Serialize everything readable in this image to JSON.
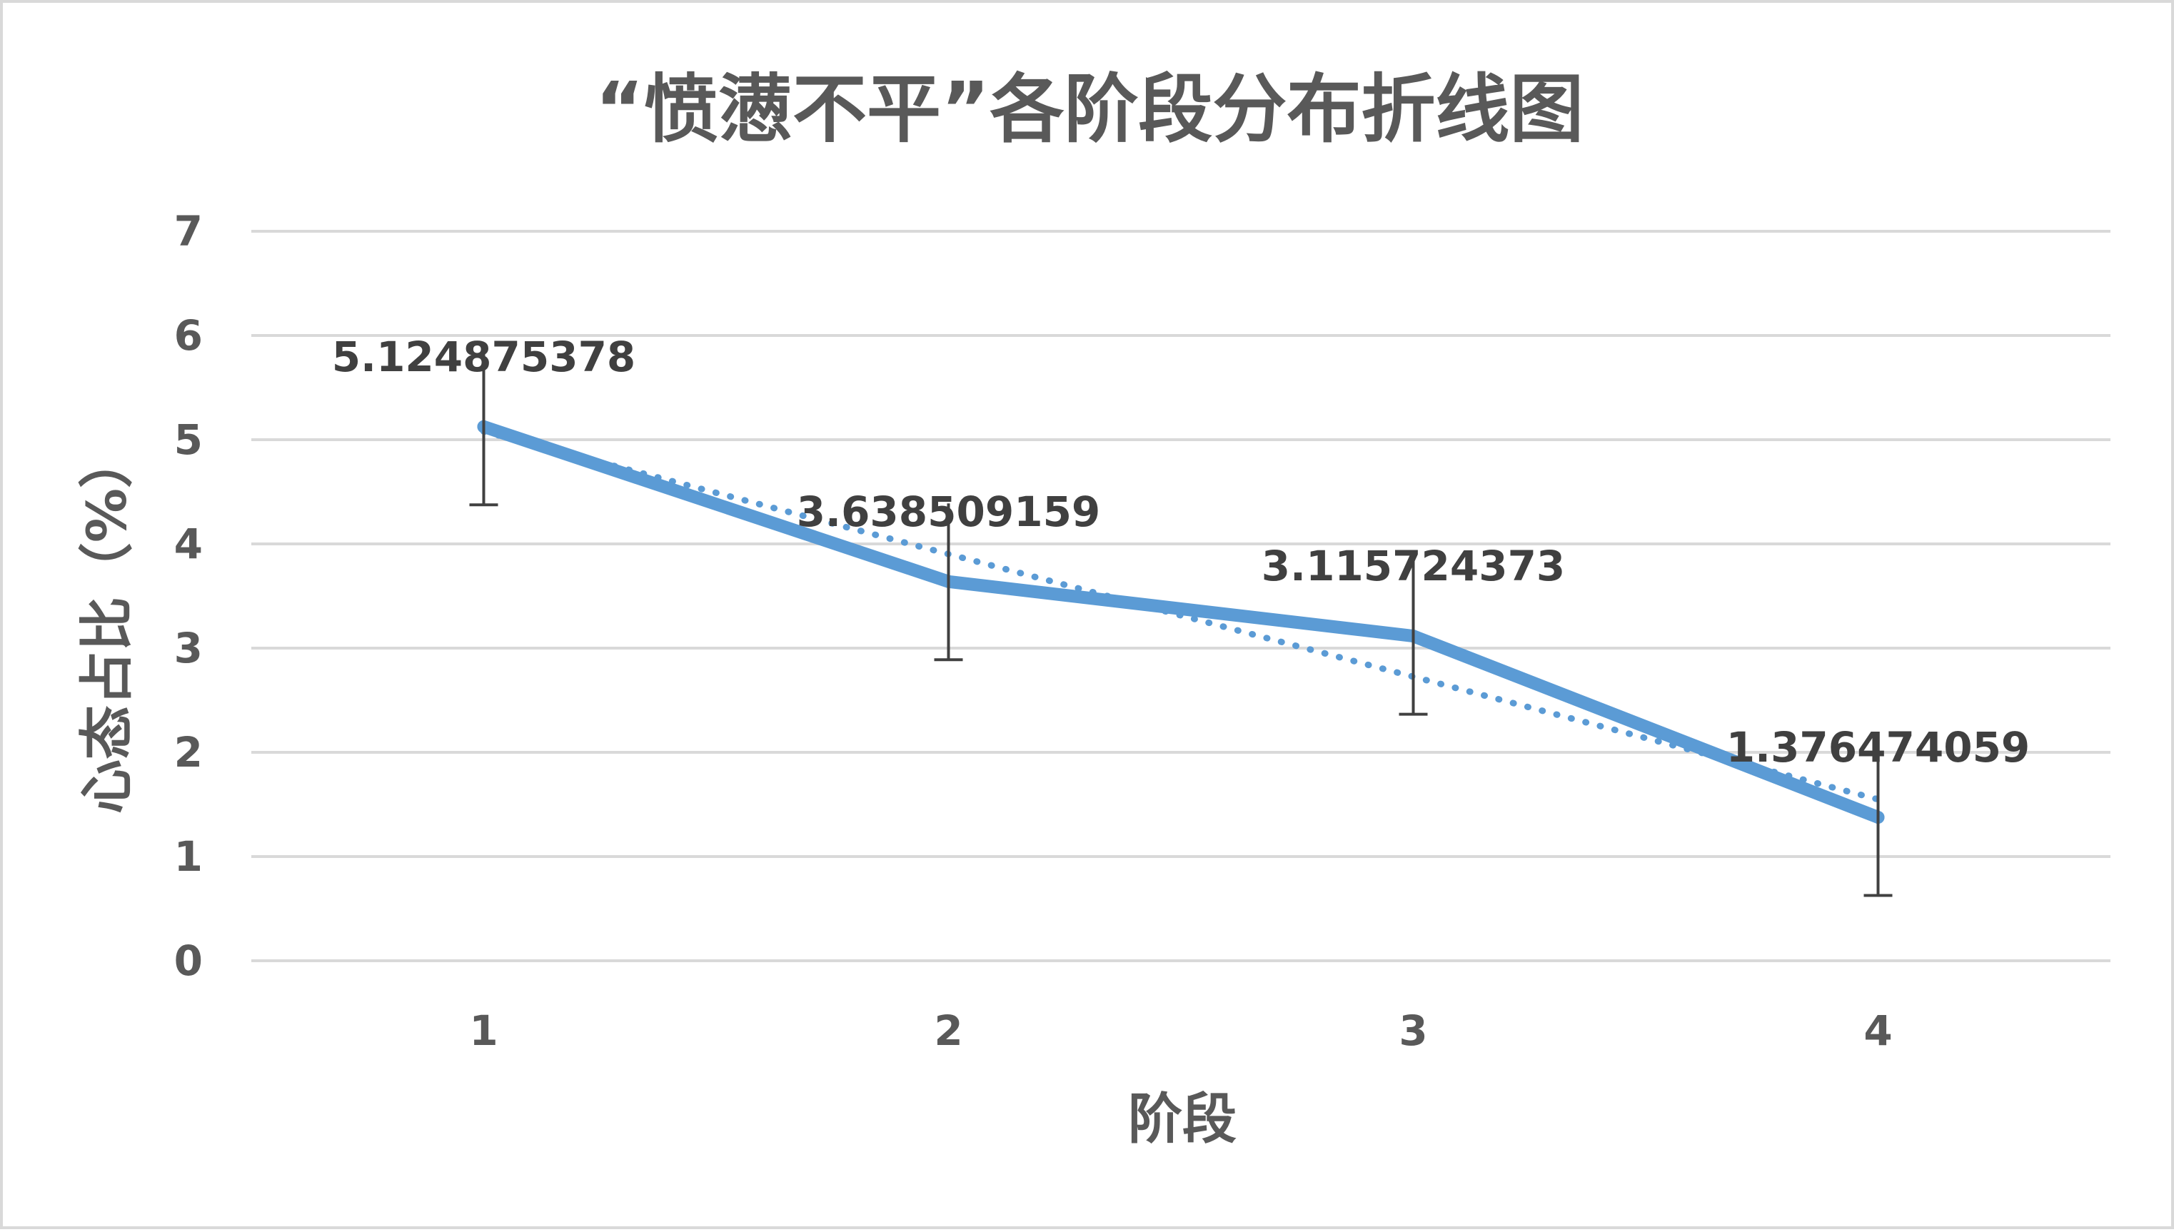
{
  "chart_data": {
    "type": "line",
    "title": "“愤懑不平”各阶段分布折线图",
    "xlabel": "阶段",
    "ylabel": "心态占比（%）",
    "categories": [
      "1",
      "2",
      "3",
      "4"
    ],
    "yticks": [
      "0",
      "1",
      "2",
      "3",
      "4",
      "5",
      "6",
      "7"
    ],
    "ylim": [
      0,
      7
    ],
    "grid": true,
    "legend": "none",
    "series": [
      {
        "values": [
          5.124875378,
          3.638509159,
          3.115724373,
          1.376474059
        ],
        "labels": [
          "5.124875378",
          "3.638509159",
          "3.115724373",
          "1.376474059"
        ],
        "error_bars": {
          "plus": 0.75,
          "minus": 0.75
        },
        "trendline": "linear",
        "color": "#5b9bd5"
      }
    ],
    "gridline_color": "#d9d9d9",
    "error_bar_color": "#404040"
  }
}
